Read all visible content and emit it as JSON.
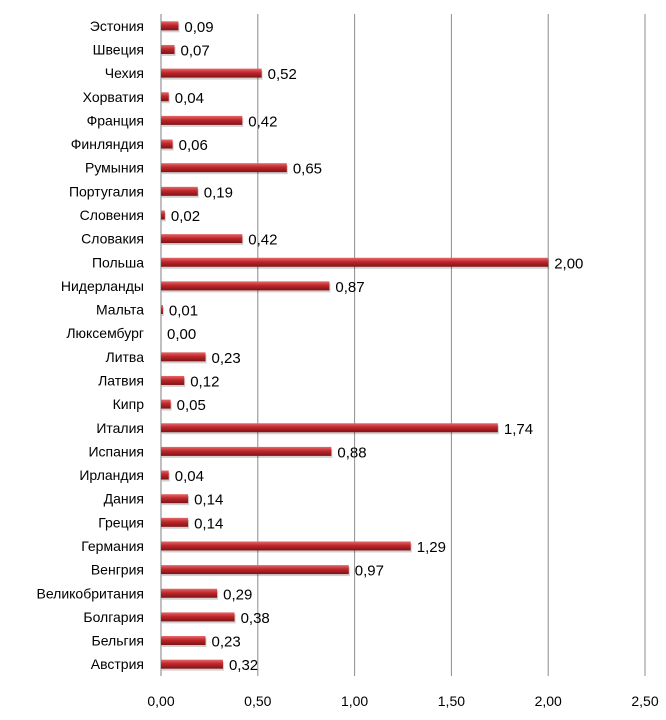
{
  "chart_data": {
    "type": "bar",
    "orientation": "horizontal",
    "categories": [
      "Эстония",
      "Швеция",
      "Чехия",
      "Хорватия",
      "Франция",
      "Финляндия",
      "Румыния",
      "Португалия",
      "Словения",
      "Словакия",
      "Польша",
      "Нидерланды",
      "Мальта",
      "Люксембург",
      "Литва",
      "Латвия",
      "Кипр",
      "Италия",
      "Испания",
      "Ирландия",
      "Дания",
      "Греция",
      "Германия",
      "Венгрия",
      "Великобритания",
      "Болгария",
      "Бельгия",
      "Австрия"
    ],
    "values": [
      0.09,
      0.07,
      0.52,
      0.04,
      0.42,
      0.06,
      0.65,
      0.19,
      0.02,
      0.42,
      2.0,
      0.87,
      0.01,
      0.0,
      0.23,
      0.12,
      0.05,
      1.74,
      0.88,
      0.04,
      0.14,
      0.14,
      1.29,
      0.97,
      0.29,
      0.38,
      0.23,
      0.32
    ],
    "value_labels": [
      "0,09",
      "0,07",
      "0,52",
      "0,04",
      "0,42",
      "0,06",
      "0,65",
      "0,19",
      "0,02",
      "0,42",
      "2,00",
      "0,87",
      "0,01",
      "0,00",
      "0,23",
      "0,12",
      "0,05",
      "1,74",
      "0,88",
      "0,04",
      "0,14",
      "0,14",
      "1,29",
      "0,97",
      "0,29",
      "0,38",
      "0,23",
      "0,32"
    ],
    "x_ticks": [
      "0,00",
      "0,50",
      "1,00",
      "1,50",
      "2,00",
      "2,50"
    ],
    "xlim": [
      0,
      2.5
    ],
    "title": "",
    "xlabel": "",
    "ylabel": "",
    "grid": "vertical",
    "legend": "none",
    "bar_color": "#c0262b",
    "bar_highlight": "#e46a6a",
    "bar_shadow": "#7d1417",
    "gridline_color": "#8c8c8c"
  }
}
